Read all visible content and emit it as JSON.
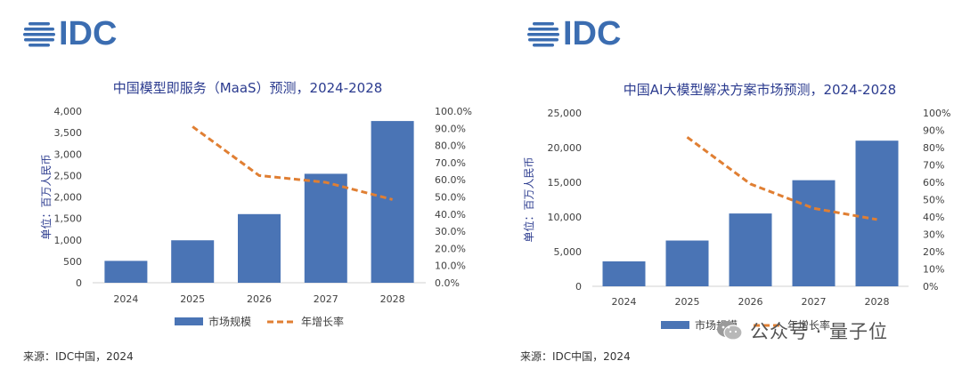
{
  "colors": {
    "bar": "#4a74b5",
    "line": "#e07f33",
    "title": "#2b3b8f",
    "axis_text": "#404040",
    "brand": "#3b6db1"
  },
  "watermark": {
    "icon": "wechat-icon",
    "text": "公众号 · 量子位"
  },
  "panels": [
    {
      "logo_text": "IDC",
      "source": "来源：IDC中国，2024",
      "chart_data": {
        "type": "bar",
        "title": "中国模型即服务（MaaS）预测，2024-2028",
        "ylabel": "单位：百万人民币",
        "categories": [
          "2024",
          "2025",
          "2026",
          "2027",
          "2028"
        ],
        "ylim": [
          0,
          4000
        ],
        "yticks": [
          "4,000",
          "3,500",
          "3,000",
          "2,500",
          "2,000",
          "1,500",
          "1,000",
          "500",
          "0"
        ],
        "y2lim": [
          0,
          100
        ],
        "y2ticks": [
          "100.0%",
          "90.0%",
          "80.0%",
          "70.0%",
          "60.0%",
          "50.0%",
          "40.0%",
          "30.0%",
          "20.0%",
          "10.0%",
          "0.0%"
        ],
        "series": [
          {
            "name": "市场规模",
            "type": "bar",
            "axis": "left",
            "values": [
              510,
              990,
              1600,
              2540,
              3770
            ]
          },
          {
            "name": "年增长率",
            "type": "line",
            "axis": "right",
            "values": [
              null,
              91.0,
              62.5,
              58.5,
              48.5
            ]
          }
        ],
        "legend_position": "bottom"
      }
    },
    {
      "logo_text": "IDC",
      "source": "来源：IDC中国，2024",
      "chart_data": {
        "type": "bar",
        "title": "中国AI大模型解决方案市场预测，2024-2028",
        "ylabel": "单位：百万人民币",
        "categories": [
          "2024",
          "2025",
          "2026",
          "2027",
          "2028"
        ],
        "ylim": [
          0,
          25000
        ],
        "yticks": [
          "25,000",
          "20,000",
          "15,000",
          "10,000",
          "5,000",
          "0"
        ],
        "y2lim": [
          0,
          100
        ],
        "y2ticks": [
          "100%",
          "90%",
          "80%",
          "70%",
          "60%",
          "50%",
          "40%",
          "30%",
          "20%",
          "10%",
          "0%"
        ],
        "series": [
          {
            "name": "市场规模",
            "type": "bar",
            "axis": "left",
            "values": [
              3600,
              6600,
              10500,
              15300,
              21000
            ]
          },
          {
            "name": "年增长率",
            "type": "line",
            "axis": "right",
            "values": [
              null,
              86.0,
              59.0,
              45.0,
              38.5
            ]
          }
        ],
        "legend_position": "bottom"
      }
    }
  ]
}
